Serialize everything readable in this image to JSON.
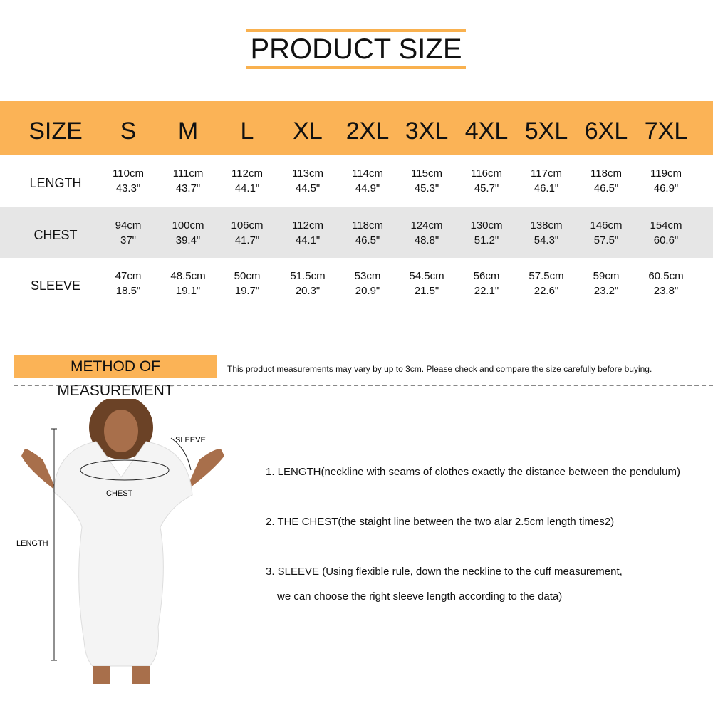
{
  "header": {
    "title": "PRODUCT SIZE"
  },
  "table": {
    "columns": [
      "SIZE",
      "S",
      "M",
      "L",
      "XL",
      "2XL",
      "3XL",
      "4XL",
      "5XL",
      "6XL",
      "7XL"
    ],
    "rows": [
      {
        "label": "LENGTH",
        "cells": [
          [
            "110cm",
            "43.3\""
          ],
          [
            "111cm",
            "43.7\""
          ],
          [
            "112cm",
            "44.1\""
          ],
          [
            "113cm",
            "44.5\""
          ],
          [
            "114cm",
            "44.9\""
          ],
          [
            "115cm",
            "45.3\""
          ],
          [
            "116cm",
            "45.7\""
          ],
          [
            "117cm",
            "46.1\""
          ],
          [
            "118cm",
            "46.5\""
          ],
          [
            "119cm",
            "46.9\""
          ]
        ]
      },
      {
        "label": "CHEST",
        "cells": [
          [
            "94cm",
            "37\""
          ],
          [
            "100cm",
            "39.4\""
          ],
          [
            "106cm",
            "41.7\""
          ],
          [
            "112cm",
            "44.1\""
          ],
          [
            "118cm",
            "46.5\""
          ],
          [
            "124cm",
            "48.8\""
          ],
          [
            "130cm",
            "51.2\""
          ],
          [
            "138cm",
            "54.3\""
          ],
          [
            "146cm",
            "57.5\""
          ],
          [
            "154cm",
            "60.6\""
          ]
        ]
      },
      {
        "label": "SLEEVE",
        "cells": [
          [
            "47cm",
            "18.5\""
          ],
          [
            "48.5cm",
            "19.1\""
          ],
          [
            "50cm",
            "19.7\""
          ],
          [
            "51.5cm",
            "20.3\""
          ],
          [
            "53cm",
            "20.9\""
          ],
          [
            "54.5cm",
            "21.5\""
          ],
          [
            "56cm",
            "22.1\""
          ],
          [
            "57.5cm",
            "22.6\""
          ],
          [
            "59cm",
            "23.2\""
          ],
          [
            "60.5cm",
            "23.8\""
          ]
        ]
      }
    ]
  },
  "method": {
    "title": "METHOD OF MEASUREMENT",
    "note": "This product measurements may vary by up to 3cm. Please check and compare the size carefully before buying.",
    "figure_labels": {
      "sleeve": "SLEEVE",
      "chest": "CHEST",
      "length": "LENGTH"
    },
    "instructions": [
      "1. LENGTH(neckline with seams of clothes exactly the distance between the pendulum)",
      "2. THE CHEST(the staight line between the two alar 2.5cm length times2)",
      "3. SLEEVE (Using flexible rule, down the neckline to the cuff measurement,",
      "we can choose the right sleeve length according to the data)"
    ]
  }
}
